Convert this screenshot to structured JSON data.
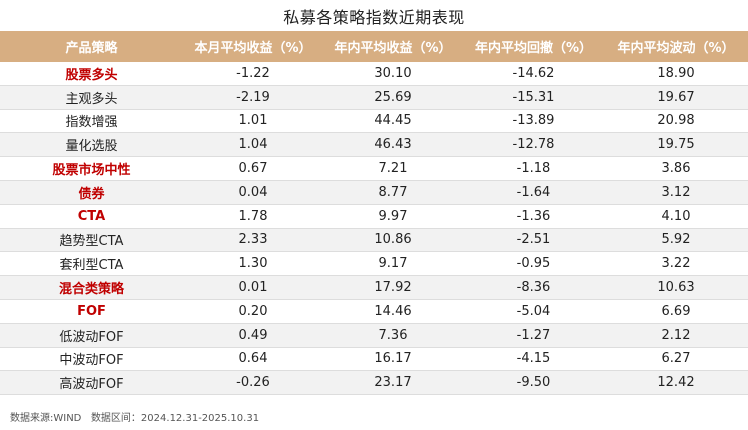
{
  "title": "私募各策略指数近期表现",
  "columns": [
    "产品策略",
    "本月平均收益（%）",
    "年内平均收益（%）",
    "年内平均回撤（%）",
    "年内平均波动（%）"
  ],
  "rows": [
    {
      "name": "股票多头",
      "highlight": true,
      "values": [
        "-1.22",
        "30.10",
        "-14.62",
        "18.90"
      ]
    },
    {
      "name": "主观多头",
      "highlight": false,
      "values": [
        "-2.19",
        "25.69",
        "-15.31",
        "19.67"
      ]
    },
    {
      "name": "指数增强",
      "highlight": false,
      "values": [
        "1.01",
        "44.45",
        "-13.89",
        "20.98"
      ]
    },
    {
      "name": "量化选股",
      "highlight": false,
      "values": [
        "1.04",
        "46.43",
        "-12.78",
        "19.75"
      ]
    },
    {
      "name": "股票市场中性",
      "highlight": true,
      "values": [
        "0.67",
        "7.21",
        "-1.18",
        "3.86"
      ]
    },
    {
      "name": "债券",
      "highlight": true,
      "values": [
        "0.04",
        "8.77",
        "-1.64",
        "3.12"
      ]
    },
    {
      "name": "CTA",
      "highlight": true,
      "values": [
        "1.78",
        "9.97",
        "-1.36",
        "4.10"
      ]
    },
    {
      "name": "趋势型CTA",
      "highlight": false,
      "values": [
        "2.33",
        "10.86",
        "-2.51",
        "5.92"
      ]
    },
    {
      "name": "套利型CTA",
      "highlight": false,
      "values": [
        "1.30",
        "9.17",
        "-0.95",
        "3.22"
      ]
    },
    {
      "name": "混合类策略",
      "highlight": true,
      "values": [
        "0.01",
        "17.92",
        "-8.36",
        "10.63"
      ]
    },
    {
      "name": "FOF",
      "highlight": true,
      "values": [
        "0.20",
        "14.46",
        "-5.04",
        "6.69"
      ]
    },
    {
      "name": "低波动FOF",
      "highlight": false,
      "values": [
        "0.49",
        "7.36",
        "-1.27",
        "2.12"
      ]
    },
    {
      "name": "中波动FOF",
      "highlight": false,
      "values": [
        "0.64",
        "16.17",
        "-4.15",
        "6.27"
      ]
    },
    {
      "name": "高波动FOF",
      "highlight": false,
      "values": [
        "-0.26",
        "23.17",
        "-9.50",
        "12.42"
      ]
    }
  ],
  "footer": {
    "source": "数据来源:WIND",
    "range": "数据区间：2024.12.31-2025.10.31"
  },
  "colors": {
    "header_bg": "#d7ae82",
    "header_text": "#ffffff",
    "highlight_text": "#c00000",
    "row_shade": "#f2f2f2"
  }
}
